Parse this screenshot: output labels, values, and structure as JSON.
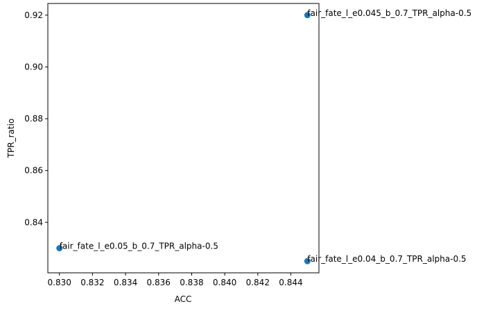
{
  "chart_data": {
    "type": "scatter",
    "title": "",
    "xlabel": "ACC",
    "ylabel": "TPR_ratio",
    "xlim": [
      0.8293,
      0.8457
    ],
    "ylim": [
      0.8205,
      0.9245
    ],
    "x_ticks": [
      0.83,
      0.832,
      0.834,
      0.836,
      0.838,
      0.84,
      0.842,
      0.844
    ],
    "x_tick_labels": [
      "0.830",
      "0.832",
      "0.834",
      "0.836",
      "0.838",
      "0.840",
      "0.842",
      "0.844"
    ],
    "y_ticks": [
      0.84,
      0.86,
      0.88,
      0.9,
      0.92
    ],
    "y_tick_labels": [
      "0.84",
      "0.86",
      "0.88",
      "0.90",
      "0.92"
    ],
    "grid": false,
    "marker_color": "#1f77b4",
    "points": [
      {
        "x": 0.845,
        "y": 0.92,
        "label": "fair_fate_l_e0.045_b_0.7_TPR_alpha-0.5"
      },
      {
        "x": 0.83,
        "y": 0.83,
        "label": "fair_fate_l_e0.05_b_0.7_TPR_alpha-0.5"
      },
      {
        "x": 0.845,
        "y": 0.825,
        "label": "fair_fate_l_e0.04_b_0.7_TPR_alpha-0.5"
      }
    ]
  }
}
